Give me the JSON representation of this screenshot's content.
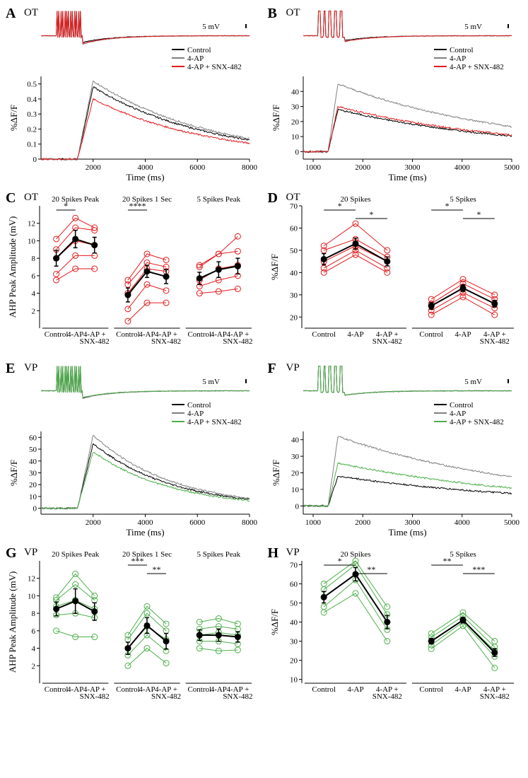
{
  "colors": {
    "control": "#000000",
    "fourAP": "#808080",
    "ot": "#e41a1c",
    "vp": "#4daf4a",
    "axis": "#000000",
    "bg": "#ffffff"
  },
  "linewidth": 1,
  "panelA": {
    "label": "A",
    "subtype": "OT",
    "scalebar": {
      "value": "5 mV"
    },
    "legend": [
      "Control",
      "4-AP",
      "4-AP + SNX-482"
    ],
    "voltage": {
      "spikes": 20,
      "baseline": 0,
      "ahp": {
        "control": -8.0,
        "fourAP": -10.2,
        "snx": -9.5
      },
      "tau_ms": 2000
    },
    "calcium": {
      "xlabel": "Time (ms)",
      "ylabel": "%ΔF/F",
      "xlim": [
        0,
        8000
      ],
      "xticks": [
        2000,
        4000,
        6000,
        8000
      ],
      "ylim": [
        0,
        0.55
      ],
      "yticks": [
        0,
        0.1,
        0.2,
        0.3,
        0.4,
        0.5
      ],
      "peaks": {
        "control": 0.48,
        "fourAP": 0.52,
        "snx": 0.4
      },
      "rise_ms": 600,
      "peak_t": 2000,
      "tau_ms": 4500
    }
  },
  "panelB": {
    "label": "B",
    "subtype": "OT",
    "scalebar": {
      "value": "5 mV"
    },
    "legend": [
      "Control",
      "4-AP",
      "4-AP + SNX-482"
    ],
    "voltage": {
      "spikes": 5,
      "baseline": 0,
      "ahp": {
        "control": -5.7,
        "fourAP": -6.7,
        "snx": -7.1
      },
      "tau_ms": 1500
    },
    "calcium": {
      "xlabel": "Time (ms)",
      "ylabel": "%ΔF/F",
      "xlim": [
        800,
        5000
      ],
      "xticks": [
        1000,
        2000,
        3000,
        4000,
        5000
      ],
      "ylim": [
        -5,
        50
      ],
      "yticks": [
        0,
        10,
        20,
        30,
        40
      ],
      "peaks": {
        "control": 28,
        "fourAP": 45,
        "snx": 30
      },
      "rise_ms": 200,
      "peak_t": 1500,
      "tau_ms": 3500
    }
  },
  "panelC": {
    "label": "C",
    "subtype": "OT",
    "ylabel": "AHP Peak Amplitude (mV)",
    "ylim": [
      0,
      14
    ],
    "yticks": [
      2,
      4,
      6,
      8,
      10,
      12
    ],
    "groups": [
      {
        "title": "20 Spikes Peak",
        "means": [
          8.0,
          10.2,
          9.5
        ],
        "sem": [
          0.9,
          1.0,
          0.9
        ],
        "indiv": [
          [
            5.5,
            6.8,
            6.8
          ],
          [
            6.2,
            8.3,
            8.3
          ],
          [
            8.0,
            10.0,
            9.5
          ],
          [
            9.0,
            11.5,
            11.2
          ],
          [
            10.2,
            12.6,
            11.5
          ]
        ],
        "sig": [
          {
            "from": 0,
            "to": 1,
            "text": "*"
          }
        ]
      },
      {
        "title": "20 Spikes 1 Sec",
        "means": [
          3.8,
          6.5,
          5.9
        ],
        "sem": [
          0.8,
          0.7,
          0.8
        ],
        "indiv": [
          [
            0.8,
            2.9,
            2.9
          ],
          [
            2.2,
            5.0,
            4.3
          ],
          [
            4.0,
            6.8,
            6.5
          ],
          [
            5.0,
            7.5,
            7.0
          ],
          [
            5.5,
            8.5,
            7.8
          ]
        ],
        "sig": [
          {
            "from": 0,
            "to": 1,
            "text": "****"
          }
        ]
      },
      {
        "title": "5 Spikes Peak",
        "means": [
          5.7,
          6.7,
          7.1
        ],
        "sem": [
          0.7,
          0.9,
          0.9
        ],
        "indiv": [
          [
            4.0,
            4.2,
            4.5
          ],
          [
            4.8,
            5.5,
            6.0
          ],
          [
            5.5,
            6.8,
            7.2
          ],
          [
            7.0,
            8.5,
            8.8
          ],
          [
            7.2,
            8.5,
            10.5
          ]
        ],
        "sig": []
      }
    ],
    "xticklabels": [
      "Control",
      "4-AP",
      "4-AP +\nSNX-482"
    ]
  },
  "panelD": {
    "label": "D",
    "subtype": "OT",
    "ylabel": "%ΔF/F",
    "ylim": [
      15,
      70
    ],
    "yticks": [
      20,
      30,
      40,
      50,
      60,
      70
    ],
    "groups": [
      {
        "title": "20 Spikes",
        "means": [
          46,
          53,
          45
        ],
        "sem": [
          2.5,
          2.5,
          2.0
        ],
        "indiv": [
          [
            40,
            48,
            40
          ],
          [
            42,
            50,
            42
          ],
          [
            45,
            52,
            45
          ],
          [
            50,
            55,
            47
          ],
          [
            52,
            62,
            50
          ]
        ],
        "sig": [
          {
            "from": 0,
            "to": 1,
            "text": "*"
          },
          {
            "from": 1,
            "to": 2,
            "text": "*"
          }
        ]
      },
      {
        "title": "5 Spikes",
        "means": [
          25,
          33,
          26
        ],
        "sem": [
          1.5,
          1.5,
          1.5
        ],
        "indiv": [
          [
            21,
            29,
            21
          ],
          [
            23,
            31,
            24
          ],
          [
            25,
            33,
            26
          ],
          [
            26,
            35,
            28
          ],
          [
            28,
            37,
            30
          ]
        ],
        "sig": [
          {
            "from": 0,
            "to": 1,
            "text": "*"
          },
          {
            "from": 1,
            "to": 2,
            "text": "*"
          }
        ]
      }
    ],
    "xticklabels": [
      "Control",
      "4-AP",
      "4-AP +\nSNX-482"
    ]
  },
  "panelE": {
    "label": "E",
    "subtype": "VP",
    "scalebar": {
      "value": "5 mV"
    },
    "legend": [
      "Control",
      "4-AP",
      "4-AP + SNX-482"
    ],
    "voltage": {
      "spikes": 20,
      "baseline": 0,
      "ahp": {
        "control": -8.5,
        "fourAP": -9.4,
        "snx": -8.2
      },
      "tau_ms": 2000
    },
    "calcium": {
      "xlabel": "Time (ms)",
      "ylabel": "%ΔF/F",
      "xlim": [
        0,
        8000
      ],
      "xticks": [
        2000,
        4000,
        6000,
        8000
      ],
      "ylim": [
        -5,
        65
      ],
      "yticks": [
        0,
        10,
        20,
        30,
        40,
        50,
        60
      ],
      "peaks": {
        "control": 55,
        "fourAP": 62,
        "snx": 48
      },
      "rise_ms": 600,
      "peak_t": 2000,
      "tau_ms": 3000
    }
  },
  "panelF": {
    "label": "F",
    "subtype": "VP",
    "scalebar": {
      "value": "5 mV"
    },
    "legend": [
      "Control",
      "4-AP",
      "4-AP + SNX-482"
    ],
    "voltage": {
      "spikes": 5,
      "baseline": 0,
      "ahp": {
        "control": -5.5,
        "fourAP": -5.5,
        "snx": -5.3
      },
      "tau_ms": 1500
    },
    "calcium": {
      "xlabel": "Time (ms)",
      "ylabel": "%ΔF/F",
      "xlim": [
        800,
        5000
      ],
      "xticks": [
        1000,
        2000,
        3000,
        4000,
        5000
      ],
      "ylim": [
        -5,
        45
      ],
      "yticks": [
        0,
        10,
        20,
        30,
        40
      ],
      "peaks": {
        "control": 18,
        "fourAP": 42,
        "snx": 26
      },
      "rise_ms": 200,
      "peak_t": 1500,
      "tau_ms": 4000
    }
  },
  "panelG": {
    "label": "G",
    "subtype": "VP",
    "ylabel": "AHP Peak Amplitude (mV)",
    "ylim": [
      0,
      14
    ],
    "yticks": [
      2,
      4,
      6,
      8,
      10,
      12
    ],
    "groups": [
      {
        "title": "20 Spikes Peak",
        "means": [
          8.5,
          9.4,
          8.2
        ],
        "sem": [
          0.8,
          1.4,
          1.0
        ],
        "indiv": [
          [
            6.0,
            5.3,
            5.3
          ],
          [
            7.8,
            8.0,
            7.5
          ],
          [
            8.8,
            9.5,
            8.5
          ],
          [
            9.5,
            11.3,
            9.5
          ],
          [
            9.8,
            12.5,
            10.0
          ]
        ],
        "sig": []
      },
      {
        "title": "20 Spikes 1 Sec",
        "means": [
          4.0,
          6.6,
          4.8
        ],
        "sem": [
          0.7,
          0.9,
          0.9
        ],
        "indiv": [
          [
            2.0,
            4.0,
            2.3
          ],
          [
            3.2,
            5.5,
            3.7
          ],
          [
            4.0,
            6.5,
            5.0
          ],
          [
            5.0,
            8.0,
            6.0
          ],
          [
            5.5,
            8.8,
            6.8
          ]
        ],
        "sig": [
          {
            "from": 0,
            "to": 1,
            "text": "***"
          },
          {
            "from": 1,
            "to": 2,
            "text": "**"
          }
        ]
      },
      {
        "title": "5 Spikes Peak",
        "means": [
          5.5,
          5.5,
          5.3
        ],
        "sem": [
          0.6,
          0.7,
          0.6
        ],
        "indiv": [
          [
            4.0,
            3.7,
            3.8
          ],
          [
            4.8,
            4.8,
            4.5
          ],
          [
            5.5,
            5.8,
            5.5
          ],
          [
            6.2,
            6.5,
            6.2
          ],
          [
            7.0,
            7.4,
            6.8
          ]
        ],
        "sig": []
      }
    ],
    "xticklabels": [
      "Control",
      "4-AP",
      "4-AP +\nSNX-482"
    ]
  },
  "panelH": {
    "label": "H",
    "subtype": "VP",
    "ylabel": "%ΔF/F",
    "ylim": [
      8,
      72
    ],
    "yticks": [
      10,
      20,
      30,
      40,
      50,
      60,
      70
    ],
    "groups": [
      {
        "title": "20 Spikes",
        "means": [
          53,
          65,
          40
        ],
        "sem": [
          3.0,
          3.5,
          3.5
        ],
        "indiv": [
          [
            45,
            55,
            30
          ],
          [
            48,
            62,
            36
          ],
          [
            53,
            65,
            40
          ],
          [
            57,
            70,
            44
          ],
          [
            60,
            72,
            48
          ]
        ],
        "sig": [
          {
            "from": 0,
            "to": 1,
            "text": "*"
          },
          {
            "from": 1,
            "to": 2,
            "text": "**"
          }
        ]
      },
      {
        "title": "5 Spikes",
        "means": [
          30,
          41,
          24
        ],
        "sem": [
          1.5,
          1.5,
          2.0
        ],
        "indiv": [
          [
            26,
            38,
            16
          ],
          [
            28,
            40,
            22
          ],
          [
            30,
            41,
            25
          ],
          [
            32,
            43,
            27
          ],
          [
            34,
            45,
            30
          ]
        ],
        "sig": [
          {
            "from": 0,
            "to": 1,
            "text": "**"
          },
          {
            "from": 1,
            "to": 2,
            "text": "***"
          }
        ]
      }
    ],
    "xticklabels": [
      "Control",
      "4-AP",
      "4-AP +\nSNX-482"
    ]
  }
}
